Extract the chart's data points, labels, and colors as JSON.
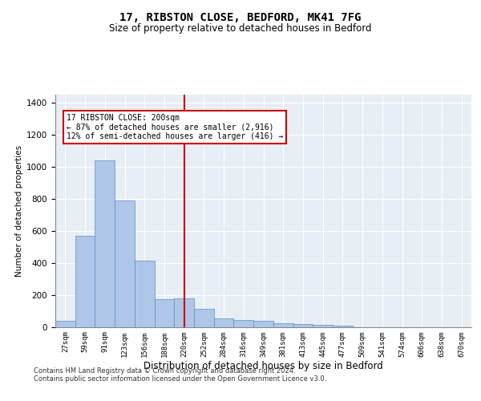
{
  "title1": "17, RIBSTON CLOSE, BEDFORD, MK41 7FG",
  "title2": "Size of property relative to detached houses in Bedford",
  "xlabel": "Distribution of detached houses by size in Bedford",
  "ylabel": "Number of detached properties",
  "categories": [
    "27sqm",
    "59sqm",
    "91sqm",
    "123sqm",
    "156sqm",
    "188sqm",
    "220sqm",
    "252sqm",
    "284sqm",
    "316sqm",
    "349sqm",
    "381sqm",
    "413sqm",
    "445sqm",
    "477sqm",
    "509sqm",
    "541sqm",
    "574sqm",
    "606sqm",
    "638sqm",
    "670sqm"
  ],
  "values": [
    40,
    570,
    1040,
    790,
    415,
    175,
    180,
    115,
    55,
    45,
    40,
    25,
    20,
    15,
    10,
    0,
    0,
    0,
    0,
    0,
    0
  ],
  "bar_color": "#aec6e8",
  "bar_edge_color": "#5a8fc2",
  "vline_x_index": 6,
  "vline_color": "#cc0000",
  "annotation_line1": "17 RIBSTON CLOSE: 200sqm",
  "annotation_line2": "← 87% of detached houses are smaller (2,916)",
  "annotation_line3": "12% of semi-detached houses are larger (416) →",
  "annotation_box_color": "#cc0000",
  "ylim": [
    0,
    1450
  ],
  "yticks": [
    0,
    200,
    400,
    600,
    800,
    1000,
    1200,
    1400
  ],
  "background_color": "#e8eef5",
  "footer_line1": "Contains HM Land Registry data © Crown copyright and database right 2024.",
  "footer_line2": "Contains public sector information licensed under the Open Government Licence v3.0."
}
